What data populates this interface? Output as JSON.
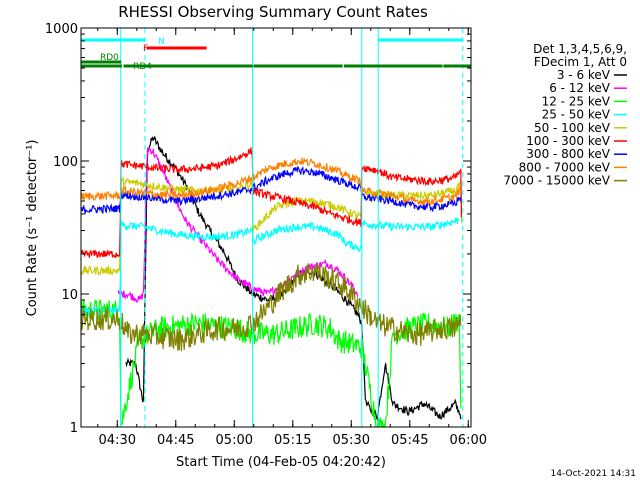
{
  "chart_data": {
    "type": "line",
    "title": "RHESSI Observing Summary Count Rates",
    "xlabel": "Start Time (04-Feb-05 04:20:42)",
    "ylabel": "Count Rate (s⁻¹ detector⁻¹)",
    "x_unit": "minutes after 04:20:42",
    "xlim": [
      0,
      100
    ],
    "ylim": [
      1,
      1000
    ],
    "yscale": "log",
    "xticks": [
      {
        "t": 9.3,
        "label": "04:30"
      },
      {
        "t": 24.3,
        "label": "04:45"
      },
      {
        "t": 39.3,
        "label": "05:00"
      },
      {
        "t": 54.3,
        "label": "05:15"
      },
      {
        "t": 69.3,
        "label": "05:30"
      },
      {
        "t": 84.3,
        "label": "05:45"
      },
      {
        "t": 99.3,
        "label": "06:00"
      }
    ],
    "yticks": [
      {
        "v": 1,
        "label": "1"
      },
      {
        "v": 10,
        "label": "10"
      },
      {
        "v": 100,
        "label": "100"
      },
      {
        "v": 1000,
        "label": "1000"
      }
    ],
    "legend_title": [
      "Det 1,3,4,5,6,9,",
      "FDecim 1, Att 0"
    ],
    "series": [
      {
        "name": "3 - 6 keV",
        "color": "#000000",
        "x": [
          0,
          11,
          11.5,
          14,
          16,
          17,
          18.5,
          21,
          24,
          27,
          30,
          33,
          37,
          40,
          44,
          48,
          52,
          54,
          56,
          59,
          62,
          65,
          68,
          71,
          72,
          73,
          76,
          78,
          80,
          84,
          88,
          92,
          96,
          97.5
        ],
        "y": [
          null,
          null,
          3,
          3,
          1.5,
          120,
          150,
          115,
          90,
          65,
          42,
          30,
          20,
          13,
          10,
          9,
          10,
          12,
          14,
          15,
          13,
          11,
          9,
          7,
          6,
          1.5,
          1.2,
          3,
          1.5,
          1.3,
          1.5,
          1.2,
          1.5,
          1.2
        ]
      },
      {
        "name": "6 - 12 keV",
        "color": "#ff00ff",
        "x": [
          0,
          9,
          9.5,
          12,
          15,
          16,
          17,
          18.5,
          21,
          24,
          27,
          31,
          35,
          40,
          44,
          48,
          52,
          55,
          59,
          63,
          66,
          69,
          71
        ],
        "y": [
          null,
          null,
          10,
          10,
          9,
          10,
          125,
          118,
          85,
          52,
          35,
          25,
          18,
          13,
          11,
          10,
          12,
          14,
          16,
          17,
          15,
          12,
          10
        ]
      },
      {
        "name": "12 - 25 keV",
        "color": "#00ff00",
        "x": [
          0,
          10,
          10.2,
          15,
          20,
          30,
          40,
          44,
          50,
          55,
          60,
          64,
          66,
          72,
          76,
          78,
          80,
          84,
          90,
          94,
          97,
          97.5
        ],
        "y": [
          7.5,
          7.5,
          1,
          4.5,
          5.5,
          6,
          5.5,
          5,
          5,
          5.5,
          6,
          5.5,
          4.5,
          4,
          1,
          1,
          5,
          5.5,
          6,
          5.5,
          6.5,
          1
        ]
      },
      {
        "name": "25 - 50 keV",
        "color": "#00ffff",
        "x": [
          0,
          10,
          10.2,
          16,
          20,
          25,
          30,
          35,
          40,
          43.9,
          44,
          50,
          55,
          60,
          66,
          68,
          71.9,
          72,
          80,
          90,
          97
        ],
        "y": [
          7.5,
          7.5,
          33,
          32,
          30,
          28,
          27,
          27,
          28,
          30,
          25,
          30,
          32,
          32,
          28,
          24,
          22,
          34,
          32,
          32,
          36
        ]
      },
      {
        "name": "50 - 100 keV",
        "color": "#cccc00",
        "x": [
          0,
          10,
          10.2,
          15,
          20,
          25,
          30,
          35,
          40,
          43.9,
          44,
          50,
          55,
          60,
          66,
          68,
          71.9,
          72,
          80,
          90,
          96,
          97.5,
          97.6
        ],
        "y": [
          15,
          15,
          70,
          68,
          64,
          61,
          60,
          60,
          62,
          68,
          30,
          45,
          50,
          50,
          45,
          42,
          38,
          58,
          55,
          55,
          60,
          68,
          20
        ]
      },
      {
        "name": "100 - 300 keV",
        "color": "#ff0000",
        "x": [
          0,
          10,
          10.2,
          15,
          20,
          25,
          30,
          35,
          40,
          43.9,
          44,
          48,
          52,
          56,
          60,
          64,
          68,
          71.9,
          72,
          76,
          80,
          90,
          96,
          97.5,
          97.6
        ],
        "y": [
          20,
          20,
          95,
          92,
          88,
          86,
          88,
          92,
          105,
          120,
          60,
          55,
          52,
          48,
          45,
          40,
          37,
          34,
          90,
          85,
          75,
          70,
          75,
          85,
          20
        ]
      },
      {
        "name": "300 - 800 keV",
        "color": "#0000ff",
        "x": [
          0,
          10,
          10.2,
          15,
          20,
          25,
          30,
          35,
          40,
          44,
          48,
          52,
          56,
          60,
          64,
          68,
          71.9,
          72,
          80,
          85,
          90,
          96,
          97.5
        ],
        "y": [
          43,
          44,
          56,
          54,
          52,
          50,
          52,
          55,
          58,
          62,
          72,
          80,
          85,
          82,
          75,
          68,
          62,
          54,
          50,
          46,
          45,
          48,
          55
        ]
      },
      {
        "name": "800 - 7000 keV",
        "color": "#ff8000",
        "x": [
          0,
          10,
          10.2,
          15,
          20,
          25,
          30,
          35,
          40,
          44,
          48,
          52,
          56,
          60,
          64,
          68,
          71.9,
          72,
          80,
          85,
          90,
          96,
          97.5
        ],
        "y": [
          54,
          55,
          60,
          58,
          56,
          55,
          58,
          62,
          68,
          75,
          88,
          95,
          100,
          96,
          88,
          78,
          70,
          60,
          55,
          50,
          50,
          54,
          62
        ]
      },
      {
        "name": "7000 - 15000 keV",
        "color": "#808000",
        "x": [
          0,
          10,
          12,
          16,
          20,
          25,
          30,
          35,
          40,
          44,
          48,
          52,
          56,
          60,
          64,
          68,
          72,
          76,
          80,
          84,
          88,
          92,
          96,
          97.5
        ],
        "y": [
          6.5,
          6.5,
          5,
          5,
          4.8,
          4.5,
          5,
          5.5,
          5.5,
          6,
          8,
          11,
          14,
          15,
          13,
          11,
          8,
          6,
          5.5,
          5,
          5,
          5.5,
          5.5,
          6.5
        ]
      }
    ],
    "markers": {
      "solid_lines": [
        10.2,
        44,
        72,
        76.2
      ],
      "dashed_lines": [
        16.4,
        97.9
      ],
      "bars": [
        {
          "label": "N",
          "color": "#00ffff",
          "segments": [
            [
              0,
              16.4
            ],
            [
              76.2,
              97.9
            ]
          ]
        },
        {
          "label": "F",
          "color": "#ff0000",
          "segments": [
            [
              16.8,
              32.2
            ]
          ]
        },
        {
          "label": "RD0",
          "color": "#008000",
          "segments": [
            [
              0,
              10.3
            ]
          ]
        },
        {
          "label": "RD4",
          "color": "#008000",
          "segments": [
            [
              0,
              10.5
            ],
            [
              10.9,
              44
            ],
            [
              44.2,
              67.1
            ],
            [
              67.4,
              92.7
            ],
            [
              92.9,
              100
            ]
          ]
        }
      ]
    },
    "timestamp": "14-Oct-2021 14:31"
  }
}
